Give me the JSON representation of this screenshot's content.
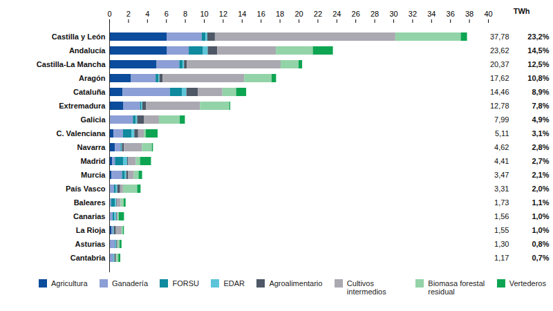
{
  "chart_data": {
    "type": "bar",
    "orientation": "horizontal",
    "stacked": true,
    "grid": false,
    "legend": "bottom",
    "x_label": "TWh",
    "xlim": [
      0,
      40
    ],
    "xticks": [
      0,
      2,
      4,
      6,
      8,
      10,
      12,
      14,
      16,
      18,
      20,
      22,
      24,
      26,
      28,
      30,
      32,
      34,
      36,
      38,
      40
    ],
    "categories": [
      "Castilla y León",
      "Andalucía",
      "Castilla-La Mancha",
      "Aragón",
      "Cataluña",
      "Extremadura",
      "Galicia",
      "C. Valenciana",
      "Navarra",
      "Madrid",
      "Murcia",
      "País Vasco",
      "Baleares",
      "Canarias",
      "La Rioja",
      "Asturias",
      "Cantabria"
    ],
    "series": [
      {
        "name": "Agricultura",
        "color": "#0c4c9c",
        "values": [
          6.06,
          6.1,
          5.0,
          2.3,
          1.4,
          1.5,
          0.1,
          0.45,
          0.6,
          0.3,
          0.25,
          0.1,
          0.1,
          0.1,
          0.25,
          0.05,
          0.05
        ]
      },
      {
        "name": "Ganadería",
        "color": "#8c9fd6",
        "values": [
          3.7,
          2.3,
          2.4,
          2.6,
          5.0,
          1.75,
          2.4,
          1.0,
          0.6,
          0.3,
          1.1,
          0.4,
          0.1,
          0.25,
          0.15,
          0.55,
          0.35
        ]
      },
      {
        "name": "FORSU",
        "color": "#0f8a9e",
        "values": [
          0.4,
          1.5,
          0.35,
          0.3,
          1.3,
          0.15,
          0.3,
          0.9,
          0.1,
          0.9,
          0.3,
          0.2,
          0.4,
          0.2,
          0.05,
          0.05,
          0.05
        ]
      },
      {
        "name": "EDAR",
        "color": "#5cc5d9",
        "values": [
          0.2,
          0.5,
          0.15,
          0.1,
          0.45,
          0.1,
          0.15,
          0.3,
          0.05,
          0.4,
          0.15,
          0.15,
          0.15,
          0.2,
          0.05,
          0.1,
          0.1
        ]
      },
      {
        "name": "Agroalimentario",
        "color": "#4e5866",
        "values": [
          0.8,
          1.0,
          0.3,
          0.35,
          1.2,
          0.4,
          0.7,
          0.4,
          0.2,
          0.1,
          0.2,
          0.3,
          0.05,
          0.05,
          0.2,
          0.1,
          0.15
        ]
      },
      {
        "name": "Cultivos intermedios",
        "color": "#aaa8b1",
        "values": [
          19.05,
          6.2,
          9.9,
          8.6,
          2.6,
          5.68,
          1.6,
          0.6,
          1.9,
          0.8,
          0.6,
          0.3,
          0.4,
          0.1,
          0.6,
          0.05,
          0.05
        ]
      },
      {
        "name": "Biomasa forestal residual",
        "color": "#93d3a8",
        "values": [
          6.91,
          3.9,
          1.9,
          2.9,
          1.45,
          3.1,
          2.2,
          0.2,
          1.05,
          0.45,
          0.5,
          1.5,
          0.33,
          0.1,
          0.15,
          0.2,
          0.22
        ]
      },
      {
        "name": "Vertederos",
        "color": "#0ea552",
        "values": [
          0.66,
          2.12,
          0.37,
          0.47,
          1.06,
          0.1,
          0.54,
          1.26,
          0.12,
          1.16,
          0.37,
          0.36,
          0.2,
          0.56,
          0.1,
          0.2,
          0.2
        ]
      }
    ],
    "totals": {
      "values": [
        37.78,
        23.62,
        20.37,
        17.62,
        14.46,
        12.78,
        7.99,
        5.11,
        4.62,
        4.41,
        3.47,
        3.31,
        1.73,
        1.56,
        1.55,
        1.3,
        1.17
      ],
      "value_labels": [
        "37,78",
        "23,62",
        "20,37",
        "17,62",
        "14,46",
        "12,78",
        "7,99",
        "5,11",
        "4,62",
        "4,41",
        "3,47",
        "3,31",
        "1,73",
        "1,56",
        "1,55",
        "1,30",
        "1,17"
      ]
    },
    "shares": {
      "values": [
        23.2,
        14.5,
        12.5,
        10.8,
        8.9,
        7.8,
        4.9,
        3.1,
        2.8,
        2.7,
        2.1,
        2.0,
        1.1,
        1.0,
        1.0,
        0.8,
        0.7
      ],
      "value_labels": [
        "23,2%",
        "14,5%",
        "12,5%",
        "10,8%",
        "8,9%",
        "7,8%",
        "4,9%",
        "3,1%",
        "2,8%",
        "2,7%",
        "2,1%",
        "2,0%",
        "1,1%",
        "1,0%",
        "1,0%",
        "0,8%",
        "0,7%"
      ]
    }
  }
}
